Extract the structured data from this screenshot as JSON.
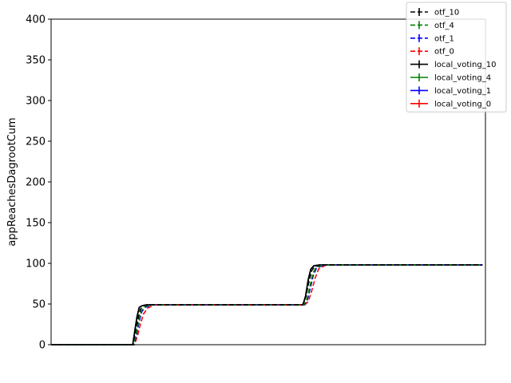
{
  "chart_data": {
    "type": "line",
    "title": "",
    "xlabel": "",
    "ylabel": "appReachesDagrootCum",
    "ylim": [
      0,
      400
    ],
    "yticks": [
      0,
      50,
      100,
      150,
      200,
      250,
      300,
      350,
      400
    ],
    "xlim": [
      0,
      100
    ],
    "x_ticks_shown": false,
    "grid": false,
    "legend_position": "top-right",
    "series": [
      {
        "name": "otf_10",
        "color": "#000000",
        "dash": "dashed",
        "x": [
          0,
          18.8,
          19.4,
          20.0,
          20.6,
          21.3,
          22.5,
          57.9,
          58.6,
          59.3,
          60.0,
          60.7,
          62.0,
          99.3
        ],
        "y": [
          0,
          0,
          16,
          32,
          44,
          48,
          49,
          49,
          58,
          76,
          91,
          96,
          98,
          98
        ]
      },
      {
        "name": "otf_4",
        "color": "#008000",
        "dash": "dashed",
        "x": [
          0,
          19.0,
          19.6,
          20.2,
          20.8,
          21.6,
          23.0,
          58.2,
          58.9,
          59.6,
          60.3,
          61.0,
          62.5,
          99.3
        ],
        "y": [
          0,
          0,
          14,
          30,
          42,
          47,
          49,
          49,
          56,
          72,
          88,
          95,
          98,
          98
        ]
      },
      {
        "name": "otf_1",
        "color": "#0000ff",
        "dash": "dashed",
        "x": [
          0,
          19.1,
          19.7,
          20.3,
          20.9,
          21.7,
          23.2,
          58.3,
          59.0,
          59.7,
          60.4,
          61.1,
          62.8,
          99.3
        ],
        "y": [
          0,
          0,
          13,
          29,
          41,
          46,
          49,
          49,
          55,
          70,
          86,
          94,
          98,
          98
        ]
      },
      {
        "name": "otf_0",
        "color": "#ff0000",
        "dash": "dashed",
        "x": [
          0,
          19.2,
          19.9,
          20.6,
          21.3,
          22.2,
          23.8,
          58.4,
          59.2,
          60.0,
          60.8,
          61.6,
          63.3,
          99.3
        ],
        "y": [
          0,
          0,
          11,
          26,
          38,
          45,
          49,
          49,
          53,
          66,
          82,
          93,
          98,
          98
        ]
      },
      {
        "name": "local_voting_10",
        "color": "#000000",
        "dash": "solid",
        "x": [
          0,
          18.8,
          19.3,
          19.8,
          20.3,
          21.0,
          22.0,
          58.0,
          58.6,
          59.2,
          59.8,
          60.5,
          61.8,
          99.3
        ],
        "y": [
          0,
          0,
          18,
          35,
          46,
          48,
          49,
          49,
          60,
          80,
          93,
          97,
          98,
          98
        ]
      },
      {
        "name": "local_voting_4",
        "color": "#008000",
        "dash": "solid",
        "x": [
          0,
          18.8,
          19.3,
          19.8,
          20.3,
          21.0,
          22.0,
          58.0,
          58.6,
          59.2,
          59.8,
          60.5,
          61.8,
          99.3
        ],
        "y": [
          0,
          0,
          18,
          35,
          46,
          48,
          49,
          49,
          60,
          80,
          93,
          97,
          98,
          98
        ]
      },
      {
        "name": "local_voting_1",
        "color": "#0000ff",
        "dash": "solid",
        "x": [
          0,
          18.8,
          19.3,
          19.8,
          20.3,
          21.0,
          22.0,
          58.0,
          58.6,
          59.2,
          59.8,
          60.5,
          61.8,
          99.3
        ],
        "y": [
          0,
          0,
          18,
          35,
          46,
          48,
          49,
          49,
          60,
          80,
          93,
          97,
          98,
          98
        ]
      },
      {
        "name": "local_voting_0",
        "color": "#ff0000",
        "dash": "solid",
        "x": [
          0,
          18.8,
          19.3,
          19.8,
          20.3,
          21.0,
          22.0,
          58.0,
          58.6,
          59.2,
          59.8,
          60.5,
          61.8,
          99.3
        ],
        "y": [
          0,
          0,
          18,
          35,
          46,
          48,
          49,
          49,
          60,
          80,
          93,
          97,
          98,
          98
        ]
      }
    ]
  }
}
